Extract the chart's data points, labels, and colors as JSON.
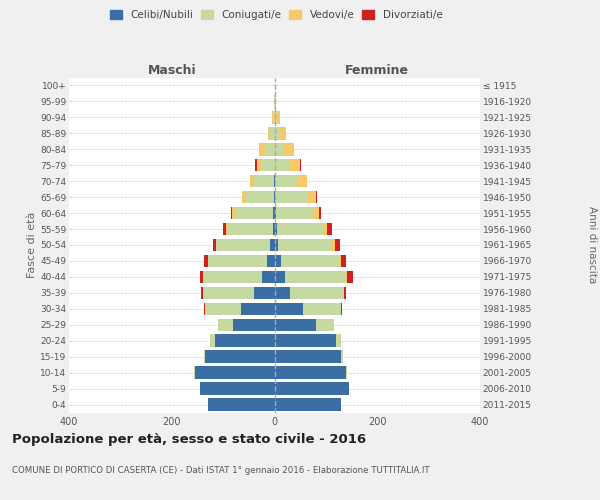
{
  "age_groups": [
    "0-4",
    "5-9",
    "10-14",
    "15-19",
    "20-24",
    "25-29",
    "30-34",
    "35-39",
    "40-44",
    "45-49",
    "50-54",
    "55-59",
    "60-64",
    "65-69",
    "70-74",
    "75-79",
    "80-84",
    "85-89",
    "90-94",
    "95-99",
    "100+"
  ],
  "birth_years": [
    "2011-2015",
    "2006-2010",
    "2001-2005",
    "1996-2000",
    "1991-1995",
    "1986-1990",
    "1981-1985",
    "1976-1980",
    "1971-1975",
    "1966-1970",
    "1961-1965",
    "1956-1960",
    "1951-1955",
    "1946-1950",
    "1941-1945",
    "1936-1940",
    "1931-1935",
    "1926-1930",
    "1921-1925",
    "1916-1920",
    "≤ 1915"
  ],
  "male": {
    "celibe": [
      130,
      145,
      155,
      135,
      115,
      80,
      65,
      40,
      25,
      15,
      8,
      3,
      2,
      1,
      1,
      0,
      0,
      0,
      0,
      0,
      0
    ],
    "coniugato": [
      0,
      0,
      1,
      3,
      10,
      30,
      70,
      100,
      115,
      115,
      105,
      90,
      75,
      55,
      38,
      25,
      18,
      8,
      3,
      1,
      0
    ],
    "vedovo": [
      0,
      0,
      0,
      0,
      0,
      0,
      0,
      0,
      0,
      0,
      1,
      2,
      5,
      7,
      8,
      10,
      12,
      5,
      2,
      0,
      0
    ],
    "divorziato": [
      0,
      0,
      0,
      0,
      0,
      0,
      2,
      3,
      5,
      7,
      5,
      5,
      3,
      0,
      0,
      2,
      0,
      0,
      0,
      0,
      0
    ]
  },
  "female": {
    "nubile": [
      130,
      145,
      140,
      130,
      120,
      80,
      55,
      30,
      20,
      12,
      7,
      5,
      2,
      1,
      0,
      0,
      0,
      0,
      0,
      0,
      0
    ],
    "coniugata": [
      0,
      0,
      1,
      4,
      10,
      35,
      75,
      105,
      120,
      115,
      105,
      90,
      75,
      65,
      45,
      30,
      18,
      8,
      2,
      1,
      0
    ],
    "vedova": [
      0,
      0,
      0,
      0,
      0,
      0,
      0,
      0,
      1,
      3,
      5,
      8,
      10,
      15,
      18,
      20,
      20,
      15,
      8,
      2,
      0
    ],
    "divorziata": [
      0,
      0,
      0,
      0,
      0,
      0,
      2,
      5,
      12,
      10,
      10,
      8,
      3,
      2,
      0,
      2,
      0,
      0,
      0,
      0,
      0
    ]
  },
  "colors": {
    "celibe": "#3a6ea5",
    "coniugato": "#c5d9a0",
    "vedovo": "#f5c96a",
    "divorziato": "#cc2222"
  },
  "xlim": 400,
  "title": "Popolazione per età, sesso e stato civile - 2016",
  "subtitle": "COMUNE DI PORTICO DI CASERTA (CE) - Dati ISTAT 1° gennaio 2016 - Elaborazione TUTTITALIA.IT",
  "ylabel_left": "Fasce di età",
  "ylabel_right": "Anni di nascita",
  "xlabel_left": "Maschi",
  "xlabel_right": "Femmine",
  "bg_color": "#f0f0f0",
  "plot_bg_color": "#ffffff",
  "grid_color": "#cccccc"
}
